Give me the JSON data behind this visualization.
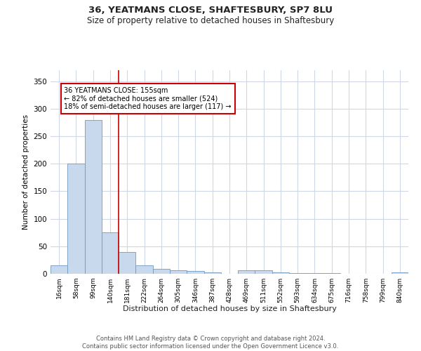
{
  "title_line1": "36, YEATMANS CLOSE, SHAFTESBURY, SP7 8LU",
  "title_line2": "Size of property relative to detached houses in Shaftesbury",
  "xlabel": "Distribution of detached houses by size in Shaftesbury",
  "ylabel": "Number of detached properties",
  "bar_color": "#c9d9ed",
  "bar_edge_color": "#7099c0",
  "vline_color": "#cc0000",
  "annotation_text": "36 YEATMANS CLOSE: 155sqm\n← 82% of detached houses are smaller (524)\n18% of semi-detached houses are larger (117) →",
  "annotation_box_color": "#ffffff",
  "annotation_box_edge": "#cc0000",
  "categories": [
    "16sqm",
    "58sqm",
    "99sqm",
    "140sqm",
    "181sqm",
    "222sqm",
    "264sqm",
    "305sqm",
    "346sqm",
    "387sqm",
    "428sqm",
    "469sqm",
    "511sqm",
    "552sqm",
    "593sqm",
    "634sqm",
    "675sqm",
    "716sqm",
    "758sqm",
    "799sqm",
    "840sqm"
  ],
  "values": [
    15,
    200,
    280,
    75,
    40,
    15,
    9,
    6,
    5,
    2,
    0,
    6,
    6,
    2,
    1,
    1,
    1,
    0,
    0,
    0,
    3
  ],
  "ylim": [
    0,
    370
  ],
  "yticks": [
    0,
    50,
    100,
    150,
    200,
    250,
    300,
    350
  ],
  "background_color": "#ffffff",
  "grid_color": "#d0d8e8",
  "footer_text": "Contains HM Land Registry data © Crown copyright and database right 2024.\nContains public sector information licensed under the Open Government Licence v3.0.",
  "figsize": [
    6.0,
    5.0
  ],
  "dpi": 100
}
